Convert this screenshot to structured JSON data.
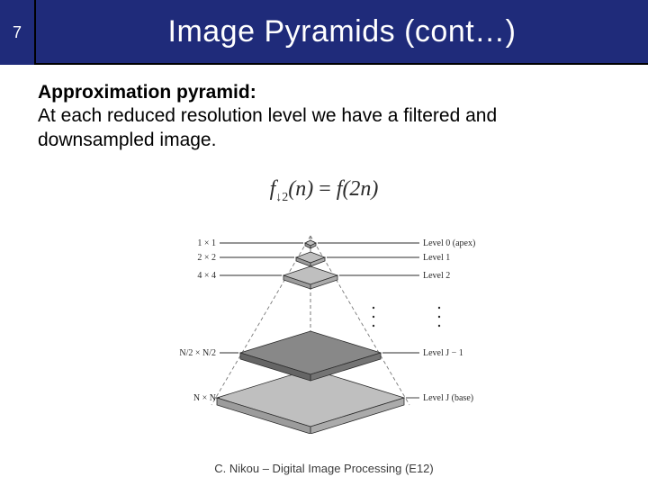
{
  "slide_number": "7",
  "title": "Image Pyramids (cont…)",
  "subheading": "Approximation pyramid:",
  "bodytext": "At each reduced resolution level we have a filtered and downsampled image.",
  "equation": {
    "lhs_func": "f",
    "lhs_sub": "↓2",
    "lhs_arg": "(n)",
    "eq": " = ",
    "rhs_func": "f",
    "rhs_arg": "(2n)"
  },
  "pyramid": {
    "left_labels": [
      "1 × 1",
      "2 × 2",
      "4 × 4",
      "N/2 × N/2",
      "N × N"
    ],
    "right_labels": [
      "Level 0 (apex)",
      "Level 1",
      "Level 2",
      "Level J − 1",
      "Level J (base)"
    ],
    "colors": {
      "fill_light": "#bfbfbf",
      "fill_dark": "#888888",
      "stroke": "#2b2b2b",
      "text": "#2b2b2b",
      "dash": "#777777"
    },
    "font_size": 10
  },
  "footer": "C. Nikou – Digital Image Processing (E12)"
}
